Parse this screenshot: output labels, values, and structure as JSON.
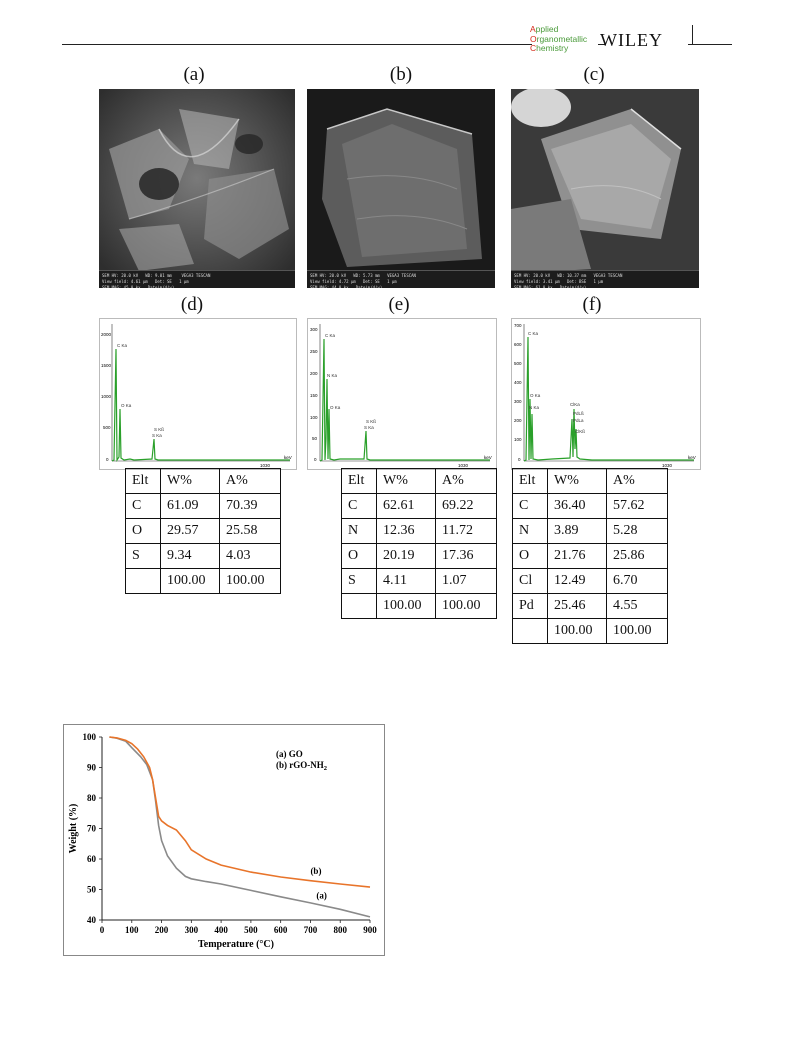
{
  "header": {
    "journal_lines": [
      {
        "cap": "A",
        "rest": "pplied"
      },
      {
        "cap": "O",
        "rest": "rganometallic"
      },
      {
        "cap": "C",
        "rest": "hemistry"
      }
    ],
    "publisher": "WILEY"
  },
  "figure_panels": {
    "sem_labels": [
      "(a)",
      "(b)",
      "(c)"
    ],
    "eds_labels": [
      "(d)",
      "(e)",
      "(f)"
    ]
  },
  "eds": [
    {
      "y_ticks": [
        "2000",
        "1500",
        "1000",
        "500",
        "0"
      ],
      "x_end": "1030",
      "unit": "keV",
      "peaks": [
        {
          "label": "C Ka"
        },
        {
          "label": "O Ka"
        },
        {
          "label": "S Kß"
        },
        {
          "label": "S Ka"
        }
      ]
    },
    {
      "y_ticks": [
        "300",
        "250",
        "200",
        "150",
        "100",
        "50",
        "0"
      ],
      "x_end": "1030",
      "unit": "keV",
      "peaks": [
        {
          "label": "C Ka"
        },
        {
          "label": "N Ka"
        },
        {
          "label": "O Ka"
        },
        {
          "label": "S Kß"
        },
        {
          "label": "S Ka"
        }
      ]
    },
    {
      "y_ticks": [
        "700",
        "600",
        "500",
        "400",
        "300",
        "200",
        "100",
        "0"
      ],
      "x_end": "1030",
      "unit": "keV",
      "peaks": [
        {
          "label": "C Ka"
        },
        {
          "label": "O Ka"
        },
        {
          "label": "N Ka"
        },
        {
          "label": "ClKa"
        },
        {
          "label": "PdLß"
        },
        {
          "label": "PdLa"
        },
        {
          "label": "ClKß"
        }
      ]
    }
  ],
  "tables": [
    {
      "header": [
        "Elt",
        "W%",
        "A%"
      ],
      "rows": [
        [
          "C",
          "61.09",
          "70.39"
        ],
        [
          "O",
          "29.57",
          "25.58"
        ],
        [
          "S",
          "9.34",
          "4.03"
        ],
        [
          "",
          "100.00",
          "100.00"
        ]
      ]
    },
    {
      "header": [
        "Elt",
        "W%",
        "A%"
      ],
      "rows": [
        [
          "C",
          "62.61",
          "69.22"
        ],
        [
          "N",
          "12.36",
          "11.72"
        ],
        [
          "O",
          "20.19",
          "17.36"
        ],
        [
          "S",
          "4.11",
          "1.07"
        ],
        [
          "",
          "100.00",
          "100.00"
        ]
      ]
    },
    {
      "header": [
        "Elt",
        "W%",
        "A%"
      ],
      "rows": [
        [
          "C",
          "36.40",
          "57.62"
        ],
        [
          "N",
          "3.89",
          "5.28"
        ],
        [
          "O",
          "21.76",
          "25.86"
        ],
        [
          "Cl",
          "12.49",
          "6.70"
        ],
        [
          "Pd",
          "25.46",
          "4.55"
        ],
        [
          "",
          "100.00",
          "100.00"
        ]
      ]
    }
  ],
  "chart_data": {
    "type": "line",
    "title": "",
    "xlabel": "Temperature (°C)",
    "ylabel": "Weight (%)",
    "xlim": [
      0,
      900
    ],
    "ylim": [
      40,
      100
    ],
    "x_ticks": [
      0,
      100,
      200,
      300,
      400,
      500,
      600,
      700,
      800,
      900
    ],
    "y_ticks": [
      40,
      50,
      60,
      70,
      80,
      90,
      100
    ],
    "legend": [
      "(a) GO",
      "(b) rGO-NH2"
    ],
    "legend_placement": "top-right",
    "grid": false,
    "series": [
      {
        "name": "(a)",
        "color": "#8a8a8a",
        "x": [
          25,
          50,
          80,
          100,
          130,
          150,
          170,
          180,
          190,
          200,
          220,
          250,
          280,
          300,
          350,
          400,
          500,
          600,
          700,
          800,
          900
        ],
        "y": [
          100,
          99.6,
          98.6,
          96.5,
          93.5,
          91,
          86,
          79,
          71,
          66,
          61,
          57,
          54.3,
          53.5,
          52.6,
          51.8,
          49.7,
          47.6,
          45.6,
          43.5,
          41
        ]
      },
      {
        "name": "(b)",
        "color": "#e8742a",
        "x": [
          25,
          50,
          80,
          100,
          120,
          140,
          160,
          170,
          180,
          190,
          200,
          220,
          250,
          280,
          300,
          350,
          400,
          500,
          600,
          700,
          800,
          900
        ],
        "y": [
          100,
          99.7,
          98.9,
          97.8,
          96,
          93.5,
          90,
          86,
          80,
          74,
          72.5,
          71,
          69.5,
          66,
          63,
          60,
          58,
          55.7,
          54.1,
          52.9,
          51.8,
          50.8
        ]
      }
    ]
  }
}
